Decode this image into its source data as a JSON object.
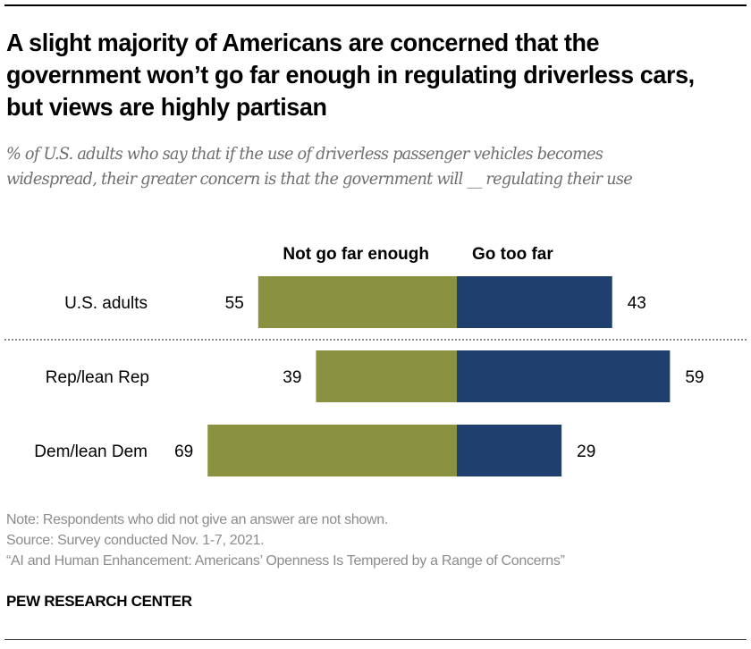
{
  "title": "A slight majority of Americans are concerned that the government won’t go far enough in regulating driverless cars, but views are highly partisan",
  "subtitle": "% of U.S. adults who say that if the use of driverless passenger vehicles becomes widespread, their greater concern is that the government will __ regulating their use",
  "notes": {
    "note": "Note: Respondents who did not give an answer are not shown.",
    "source": "Source: Survey conducted Nov. 1-7, 2021.",
    "report": "“AI and Human Enhancement: Americans’ Openness Is Tempered by a Range of Concerns”"
  },
  "brand": "PEW RESEARCH CENTER",
  "colors": {
    "not_far_enough": "#8A9140",
    "too_far": "#1F3F6E",
    "divider": "#888888"
  },
  "chart_data": {
    "type": "bar",
    "orientation": "horizontal-diverging",
    "title": "A slight majority of Americans are concerned that the government won’t go far enough in regulating driverless cars, but views are highly partisan",
    "xlabel": "",
    "ylabel": "",
    "legend_position": "top",
    "categories": [
      "U.S. adults",
      "Rep/lean Rep",
      "Dem/lean Dem"
    ],
    "series": [
      {
        "name": "Not go far enough",
        "values": [
          55,
          39,
          69
        ],
        "color": "#8A9140",
        "direction": "left"
      },
      {
        "name": "Go too far",
        "values": [
          43,
          59,
          29
        ],
        "color": "#1F3F6E",
        "direction": "right"
      }
    ],
    "divider_after_category": "U.S. adults",
    "grid": false
  }
}
